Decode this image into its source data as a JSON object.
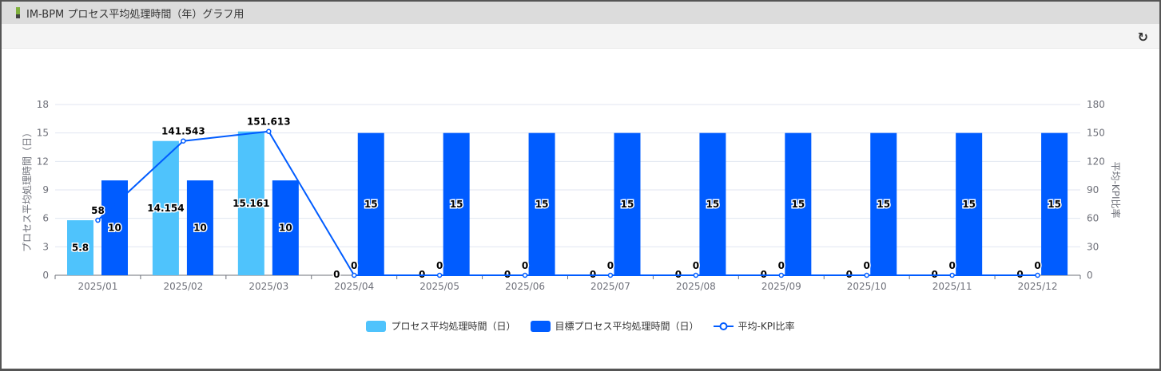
{
  "window": {
    "title": "IM-BPM プロセス平均処理時間（年）グラフ用",
    "refresh_icon": "refresh-icon"
  },
  "colors": {
    "process": "#4fc3fc",
    "target": "#005cff",
    "ratio": "#005cff"
  },
  "chart_data": {
    "type": "bar+line",
    "categories": [
      "2025/01",
      "2025/02",
      "2025/03",
      "2025/04",
      "2025/05",
      "2025/06",
      "2025/07",
      "2025/08",
      "2025/09",
      "2025/10",
      "2025/11",
      "2025/12"
    ],
    "y_left": {
      "label": "プロセス平均処理時間（日）",
      "range": [
        0,
        18
      ],
      "ticks": [
        "0",
        "3",
        "6",
        "9",
        "12",
        "15",
        "18"
      ]
    },
    "y_right": {
      "label": "平均-KPI比率",
      "range": [
        0,
        180
      ],
      "ticks": [
        "0",
        "30",
        "60",
        "90",
        "120",
        "150",
        "180"
      ]
    },
    "grid": true,
    "legend_position": "bottom",
    "series": [
      {
        "name": "プロセス平均処理時間（日）",
        "type": "bar",
        "axis": "left",
        "values": [
          5.8,
          14.154,
          15.161,
          0,
          0,
          0,
          0,
          0,
          0,
          0,
          0,
          0
        ],
        "labels": [
          "5.8",
          "14.154",
          "15.161",
          "0",
          "0",
          "0",
          "0",
          "0",
          "0",
          "0",
          "0",
          "0"
        ]
      },
      {
        "name": "目標プロセス平均処理時間（日）",
        "type": "bar",
        "axis": "left",
        "values": [
          10,
          10,
          10,
          15,
          15,
          15,
          15,
          15,
          15,
          15,
          15,
          15
        ],
        "labels": [
          "10",
          "10",
          "10",
          "15",
          "15",
          "15",
          "15",
          "15",
          "15",
          "15",
          "15",
          "15"
        ]
      },
      {
        "name": "平均-KPI比率",
        "type": "line",
        "axis": "right",
        "values": [
          58,
          141.543,
          151.613,
          0,
          0,
          0,
          0,
          0,
          0,
          0,
          0,
          0
        ],
        "labels": [
          "58",
          "141.543",
          "151.613",
          "0",
          "0",
          "0",
          "0",
          "0",
          "0",
          "0",
          "0",
          "0"
        ]
      }
    ]
  }
}
